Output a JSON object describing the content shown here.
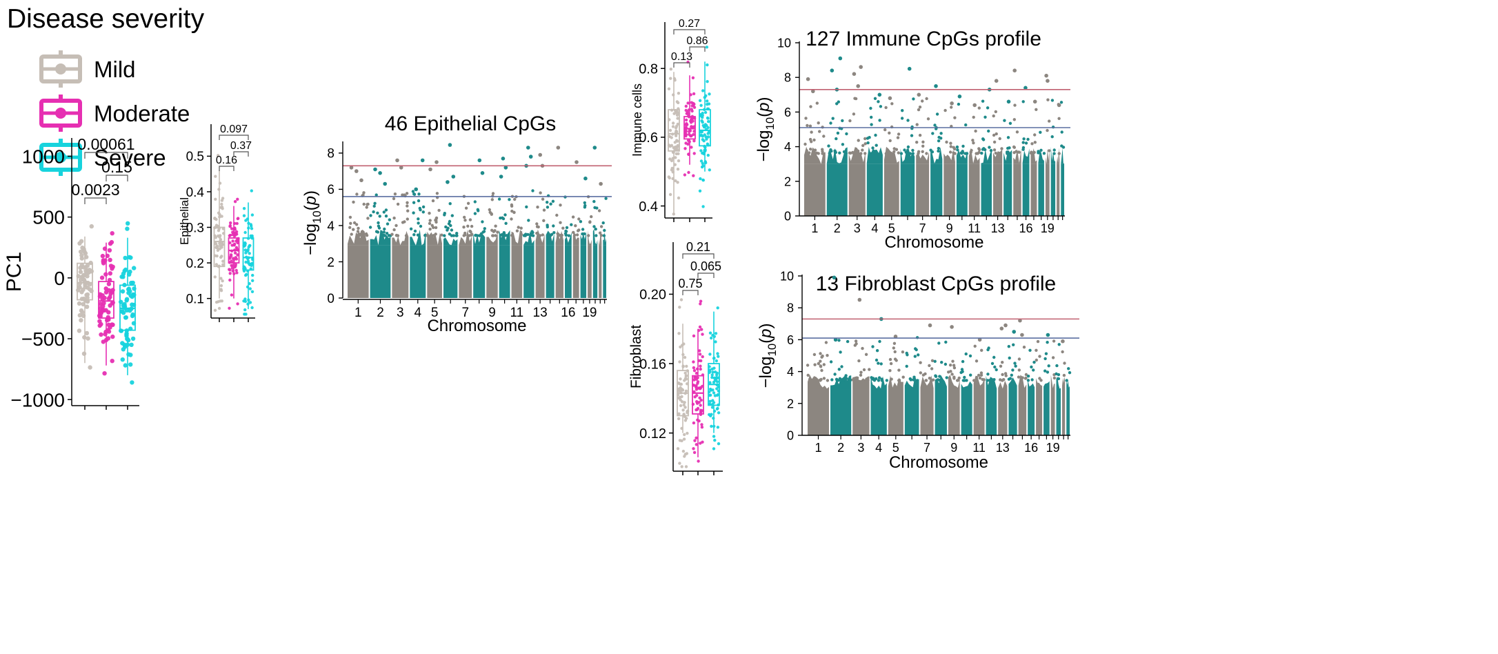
{
  "legend": {
    "title": "Disease severity",
    "items": [
      {
        "label": "Mild",
        "color": "#c6beb6",
        "fill": "#d6d0ca"
      },
      {
        "label": "Moderate",
        "color": "#e62fb2",
        "fill": "#f3a6dc"
      },
      {
        "label": "Severe",
        "color": "#17d3dd",
        "fill": "#9eeaef"
      }
    ]
  },
  "colors": {
    "gray": "#8c8680",
    "teal": "#1e8a8a",
    "redline": "#c06070",
    "blueline": "#5a6ea0"
  },
  "chart_data": [
    {
      "id": "pc1",
      "type": "box",
      "ylabel": "PC1",
      "groups": [
        "Mild",
        "Moderate",
        "Severe"
      ],
      "ylim": [
        -1050,
        1150
      ],
      "yticks": [
        1000,
        500,
        0,
        -500,
        -1000
      ],
      "ytick_labels": [
        "1000",
        "500",
        "0",
        "−500",
        "−1000"
      ],
      "boxes": [
        {
          "min": -700,
          "q1": -180,
          "median": -40,
          "q3": 120,
          "max": 340
        },
        {
          "min": -720,
          "q1": -330,
          "median": -190,
          "q3": -30,
          "max": 290
        },
        {
          "min": -800,
          "q1": -430,
          "median": -250,
          "q3": -60,
          "max": 330
        }
      ],
      "points_per_group": 70,
      "brackets": [
        {
          "from": 0,
          "to": 1,
          "label": "0.0023"
        },
        {
          "from": 1,
          "to": 2,
          "label": "0.15"
        },
        {
          "from": 0,
          "to": 2,
          "label": "0.00061"
        }
      ]
    },
    {
      "id": "epithelial",
      "type": "box",
      "ylabel": "Epithelial",
      "groups": [
        "Mild",
        "Moderate",
        "Severe"
      ],
      "ylim": [
        0.045,
        0.59
      ],
      "yticks": [
        0.1,
        0.2,
        0.3,
        0.4,
        0.5
      ],
      "ytick_labels": [
        "0.1",
        "0.2",
        "0.3",
        "0.4",
        "0.5"
      ],
      "boxes": [
        {
          "min": 0.1,
          "q1": 0.19,
          "median": 0.26,
          "q3": 0.3,
          "max": 0.46
        },
        {
          "min": 0.1,
          "q1": 0.2,
          "median": 0.235,
          "q3": 0.27,
          "max": 0.36
        },
        {
          "min": 0.07,
          "q1": 0.18,
          "median": 0.215,
          "q3": 0.27,
          "max": 0.37
        }
      ],
      "points_per_group": 70,
      "brackets": [
        {
          "from": 0,
          "to": 1,
          "label": "0.16"
        },
        {
          "from": 1,
          "to": 2,
          "label": "0.37"
        },
        {
          "from": 0,
          "to": 2,
          "label": "0.097"
        }
      ]
    },
    {
      "id": "immune",
      "type": "box",
      "ylabel": "Immune cells",
      "groups": [
        "Mild",
        "Moderate",
        "Severe"
      ],
      "ylim": [
        0.365,
        0.935
      ],
      "yticks": [
        0.4,
        0.6,
        0.8
      ],
      "ytick_labels": [
        "0.4",
        "0.6",
        "0.8"
      ],
      "boxes": [
        {
          "min": 0.38,
          "q1": 0.56,
          "median": 0.61,
          "q3": 0.68,
          "max": 0.79
        },
        {
          "min": 0.52,
          "q1": 0.595,
          "median": 0.625,
          "q3": 0.66,
          "max": 0.78
        },
        {
          "min": 0.5,
          "q1": 0.575,
          "median": 0.62,
          "q3": 0.68,
          "max": 0.82
        }
      ],
      "points_per_group": 70,
      "brackets": [
        {
          "from": 0,
          "to": 1,
          "label": "0.13"
        },
        {
          "from": 1,
          "to": 2,
          "label": "0.86"
        },
        {
          "from": 0,
          "to": 2,
          "label": "0.27"
        }
      ]
    },
    {
      "id": "fibroblast",
      "type": "box",
      "ylabel": "Fibroblast",
      "groups": [
        "Mild",
        "Moderate",
        "Severe"
      ],
      "ylim": [
        0.098,
        0.23
      ],
      "yticks": [
        0.12,
        0.16,
        0.2
      ],
      "ytick_labels": [
        "0.12",
        "0.16",
        "0.20"
      ],
      "boxes": [
        {
          "min": 0.12,
          "q1": 0.13,
          "median": 0.143,
          "q3": 0.156,
          "max": 0.183
        },
        {
          "min": 0.106,
          "q1": 0.131,
          "median": 0.143,
          "q3": 0.153,
          "max": 0.18
        },
        {
          "min": 0.12,
          "q1": 0.136,
          "median": 0.148,
          "q3": 0.16,
          "max": 0.19
        }
      ],
      "points_per_group": 70,
      "brackets": [
        {
          "from": 0,
          "to": 1,
          "label": "0.75"
        },
        {
          "from": 1,
          "to": 2,
          "label": "0.065"
        },
        {
          "from": 0,
          "to": 2,
          "label": "0.21"
        }
      ]
    },
    {
      "id": "manhattan_epithelial",
      "type": "scatter",
      "title": "46 Epithelial CpGs",
      "xlabel": "Chromosome",
      "ylabel": "-log10(p)",
      "ylim": [
        0,
        8.3
      ],
      "yticks": [
        0,
        2,
        4,
        6,
        8
      ],
      "xtick_labels": [
        "1",
        "2",
        "3",
        "4",
        "5",
        "7",
        "9",
        "11",
        "13",
        "16",
        "19"
      ],
      "xtick_chroms": [
        1,
        2,
        3,
        4,
        5,
        7,
        9,
        11,
        13,
        16,
        19
      ],
      "chromosomes": 22,
      "significance_line": 7.3,
      "suggestive_line": 5.6,
      "top_hits": [
        {
          "chrom": 1,
          "p": 7.2
        },
        {
          "chrom": 1,
          "p": 7.0
        },
        {
          "chrom": 1,
          "p": 6.5
        },
        {
          "chrom": 2,
          "p": 7.1
        },
        {
          "chrom": 2,
          "p": 6.9
        },
        {
          "chrom": 2,
          "p": 6.3
        },
        {
          "chrom": 3,
          "p": 7.6
        },
        {
          "chrom": 3,
          "p": 7.2
        },
        {
          "chrom": 4,
          "p": 7.6
        },
        {
          "chrom": 4,
          "p": 6.0
        },
        {
          "chrom": 5,
          "p": 7.5
        },
        {
          "chrom": 5,
          "p": 7.1
        },
        {
          "chrom": 6,
          "p": 8.45
        },
        {
          "chrom": 6,
          "p": 6.7
        },
        {
          "chrom": 6,
          "p": 6.4
        },
        {
          "chrom": 8,
          "p": 7.6
        },
        {
          "chrom": 8,
          "p": 6.9
        },
        {
          "chrom": 10,
          "p": 7.7
        },
        {
          "chrom": 10,
          "p": 7.2
        },
        {
          "chrom": 10,
          "p": 6.7
        },
        {
          "chrom": 12,
          "p": 8.3
        },
        {
          "chrom": 12,
          "p": 7.8
        },
        {
          "chrom": 12,
          "p": 7.3
        },
        {
          "chrom": 13,
          "p": 7.9
        },
        {
          "chrom": 13,
          "p": 7.3
        },
        {
          "chrom": 15,
          "p": 8.3
        },
        {
          "chrom": 17,
          "p": 7.5
        },
        {
          "chrom": 18,
          "p": 6.6
        },
        {
          "chrom": 20,
          "p": 8.3
        },
        {
          "chrom": 21,
          "p": 6.3
        }
      ]
    },
    {
      "id": "manhattan_immune",
      "type": "scatter",
      "title": "127 Immune CpGs profile",
      "xlabel": "Chromosome",
      "ylabel": "-log10(p)",
      "ylim": [
        0,
        10
      ],
      "yticks": [
        0,
        2,
        4,
        6,
        8,
        10
      ],
      "xtick_labels": [
        "1",
        "2",
        "3",
        "4",
        "5",
        "7",
        "9",
        "11",
        "13",
        "16",
        "19"
      ],
      "xtick_chroms": [
        1,
        2,
        3,
        4,
        5,
        7,
        9,
        11,
        13,
        16,
        19
      ],
      "chromosomes": 22,
      "significance_line": 7.3,
      "suggestive_line": 5.1,
      "top_hits": [
        {
          "chrom": 1,
          "p": 7.9
        },
        {
          "chrom": 1,
          "p": 7.2
        },
        {
          "chrom": 2,
          "p": 9.1
        },
        {
          "chrom": 2,
          "p": 8.4
        },
        {
          "chrom": 2,
          "p": 7.3
        },
        {
          "chrom": 3,
          "p": 8.6
        },
        {
          "chrom": 3,
          "p": 8.2
        },
        {
          "chrom": 3,
          "p": 7.5
        },
        {
          "chrom": 4,
          "p": 7.0
        },
        {
          "chrom": 5,
          "p": 6.8
        },
        {
          "chrom": 6,
          "p": 8.5
        },
        {
          "chrom": 7,
          "p": 7.0
        },
        {
          "chrom": 8,
          "p": 7.5
        },
        {
          "chrom": 9,
          "p": 6.5
        },
        {
          "chrom": 10,
          "p": 6.9
        },
        {
          "chrom": 11,
          "p": 6.4
        },
        {
          "chrom": 12,
          "p": 7.3
        },
        {
          "chrom": 13,
          "p": 7.8
        },
        {
          "chrom": 14,
          "p": 6.6
        },
        {
          "chrom": 15,
          "p": 8.4
        },
        {
          "chrom": 16,
          "p": 7.4
        },
        {
          "chrom": 17,
          "p": 6.6
        },
        {
          "chrom": 19,
          "p": 8.1
        },
        {
          "chrom": 19,
          "p": 7.8
        },
        {
          "chrom": 21,
          "p": 6.4
        }
      ]
    },
    {
      "id": "manhattan_fibroblast",
      "type": "scatter",
      "title": "13 Fibroblast CpGs profile",
      "xlabel": "Chromosome",
      "ylabel": "-log10(p)",
      "ylim": [
        0,
        10
      ],
      "yticks": [
        0,
        2,
        4,
        6,
        8,
        10
      ],
      "xtick_labels": [
        "1",
        "2",
        "3",
        "4",
        "5",
        "7",
        "9",
        "11",
        "13",
        "16",
        "19"
      ],
      "xtick_chroms": [
        1,
        2,
        3,
        4,
        5,
        7,
        9,
        11,
        13,
        16,
        19
      ],
      "chromosomes": 22,
      "significance_line": 7.3,
      "suggestive_line": 6.1,
      "top_hits": [
        {
          "chrom": 2,
          "p": 9.9
        },
        {
          "chrom": 3,
          "p": 8.5
        },
        {
          "chrom": 4,
          "p": 7.3
        },
        {
          "chrom": 2,
          "p": 6.0
        },
        {
          "chrom": 5,
          "p": 6.2
        },
        {
          "chrom": 7,
          "p": 6.9
        },
        {
          "chrom": 9,
          "p": 6.8
        },
        {
          "chrom": 11,
          "p": 6.0
        },
        {
          "chrom": 13,
          "p": 6.9
        },
        {
          "chrom": 13,
          "p": 6.7
        },
        {
          "chrom": 14,
          "p": 6.5
        },
        {
          "chrom": 15,
          "p": 7.2
        },
        {
          "chrom": 15,
          "p": 6.3
        },
        {
          "chrom": 18,
          "p": 6.3
        },
        {
          "chrom": 21,
          "p": 5.9
        }
      ]
    }
  ]
}
